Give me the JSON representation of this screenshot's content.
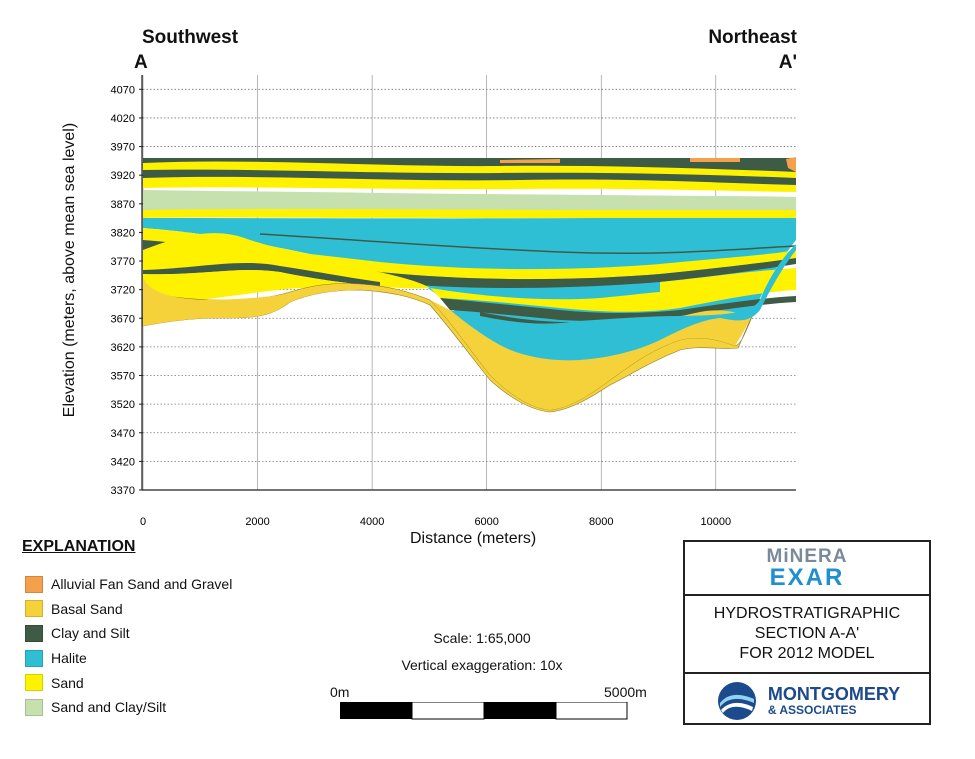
{
  "section": {
    "left_direction": "Southwest",
    "right_direction": "Northeast",
    "left_endpoint": "A",
    "right_endpoint": "A'"
  },
  "axes": {
    "ylabel": "Elevation (meters, above mean sea level)",
    "xlabel": "Distance (meters)",
    "yticks": [
      "4070",
      "4020",
      "3970",
      "3920",
      "3870",
      "3820",
      "3770",
      "3720",
      "3670",
      "3620",
      "3570",
      "3520",
      "3470",
      "3420",
      "3370"
    ],
    "xticks": [
      "0",
      "2000",
      "4000",
      "6000",
      "8000",
      "10000"
    ],
    "ylim": [
      3370,
      4095
    ],
    "xlim": [
      0,
      11400
    ]
  },
  "explanation": {
    "title": "EXPLANATION",
    "items": [
      {
        "label": "Alluvial Fan Sand and Gravel",
        "color": "#f5a04a"
      },
      {
        "label": "Basal Sand",
        "color": "#f6d23a"
      },
      {
        "label": "Clay and Silt",
        "color": "#3e5b45"
      },
      {
        "label": "Halite",
        "color": "#2fbfd5"
      },
      {
        "label": "Sand",
        "color": "#fff200"
      },
      {
        "label": "Sand and Clay/Silt",
        "color": "#c6e0ae"
      }
    ]
  },
  "scale": {
    "scale_text": "Scale: 1:65,000",
    "exaggeration_text": "Vertical exaggeration: 10x",
    "bar_start": "0m",
    "bar_end": "5000m"
  },
  "title_block": {
    "company_top": "MiNERA",
    "company_bottom": "EXAR",
    "line1": "HYDROSTRATIGRAPHIC",
    "line2": "SECTION A-A'",
    "line3": "FOR 2012 MODEL",
    "consultant": "MONTGOMERY",
    "consultant_sub": "& ASSOCIATES"
  }
}
